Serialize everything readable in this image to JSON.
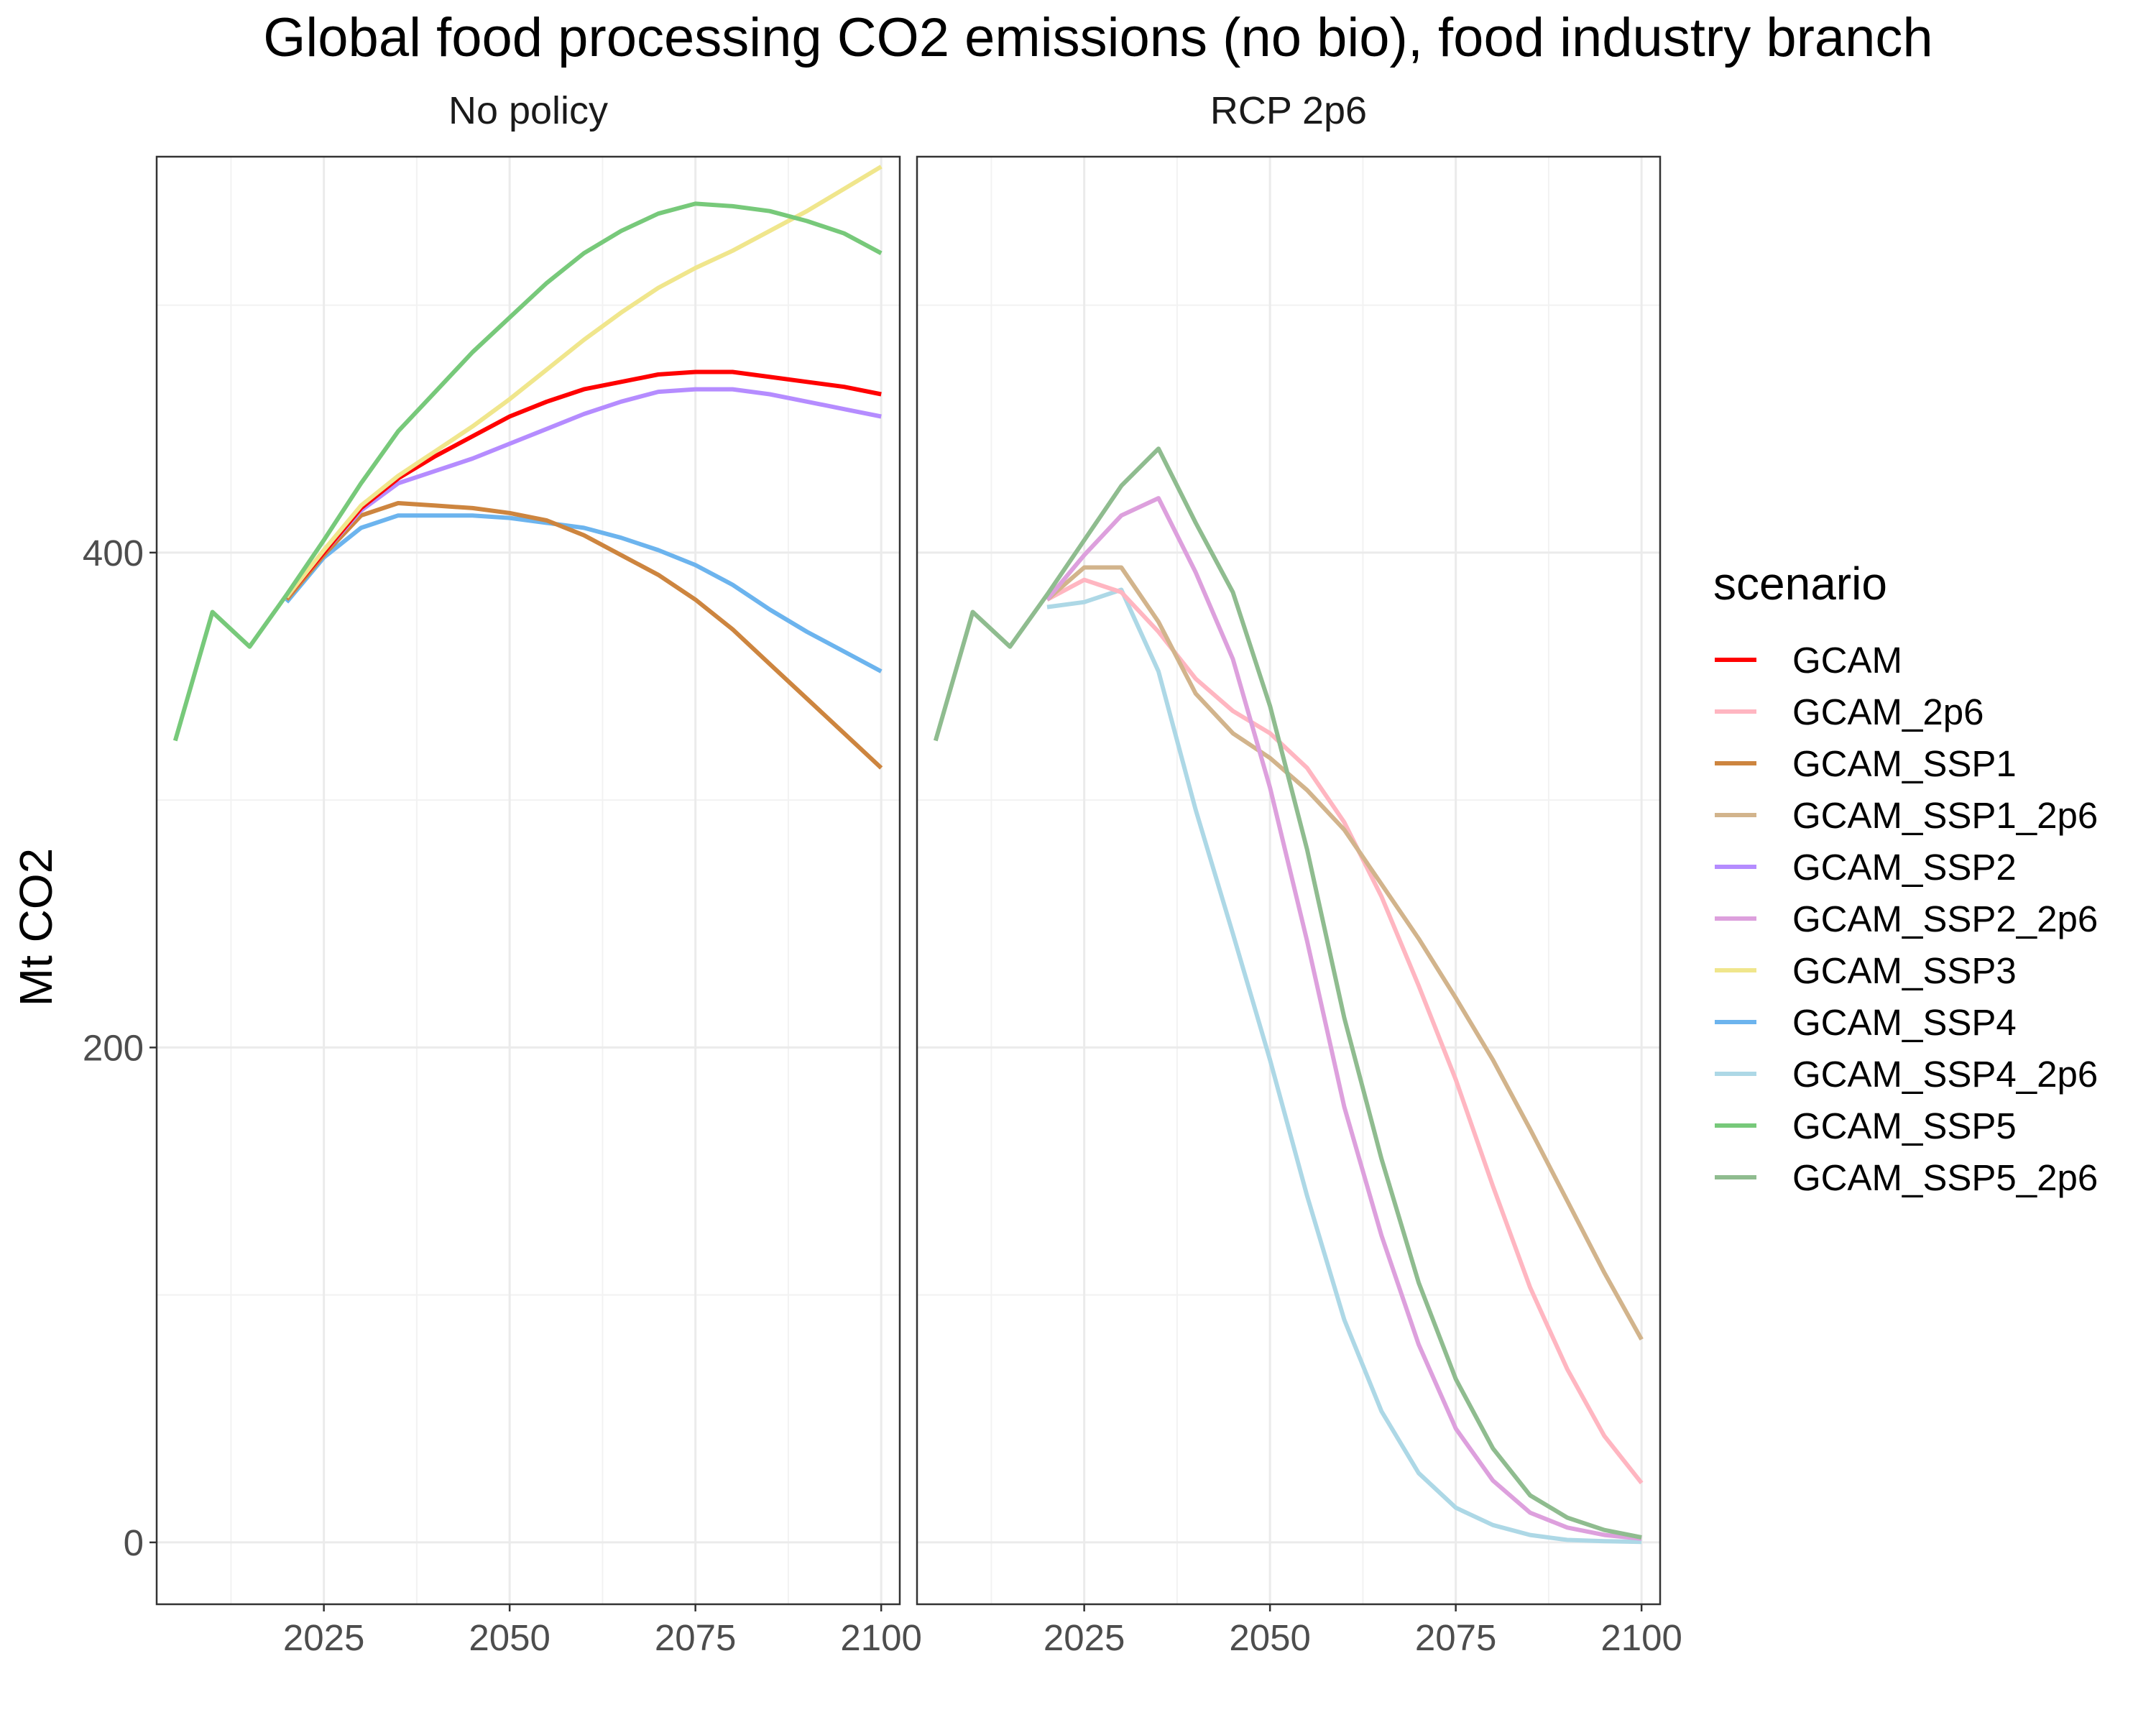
{
  "chart_data": {
    "type": "line",
    "title": "Global food processing CO2 emissions (no bio), food industry branch",
    "xlabel": "",
    "ylabel": "Mt CO2",
    "xlim": [
      2002.5,
      2102.5
    ],
    "ylim": [
      -25,
      560
    ],
    "x_ticks": [
      2025,
      2050,
      2075,
      2100
    ],
    "y_ticks": [
      0,
      200,
      400
    ],
    "grid": true,
    "legend": {
      "title": "scenario",
      "position": "right"
    },
    "colors": {
      "GCAM": "#ff0000",
      "GCAM_2p6": "#ffb6c1",
      "GCAM_SSP1": "#cd853f",
      "GCAM_SSP1_2p6": "#d2b48c",
      "GCAM_SSP2": "#b58cff",
      "GCAM_SSP2_2p6": "#dda0dd",
      "GCAM_SSP3": "#f0e68c",
      "GCAM_SSP4": "#6cb4ee",
      "GCAM_SSP4_2p6": "#add8e6",
      "GCAM_SSP5": "#77c97a",
      "GCAM_SSP5_2p6": "#8fbc8f"
    },
    "scenario_order": [
      "GCAM",
      "GCAM_2p6",
      "GCAM_SSP1",
      "GCAM_SSP1_2p6",
      "GCAM_SSP2",
      "GCAM_SSP2_2p6",
      "GCAM_SSP3",
      "GCAM_SSP4",
      "GCAM_SSP4_2p6",
      "GCAM_SSP5",
      "GCAM_SSP5_2p6"
    ],
    "panels": [
      {
        "label": "No policy",
        "series": [
          {
            "name": "GCAM_SSP4",
            "x": [
              2020,
              2025,
              2030,
              2035,
              2040,
              2045,
              2050,
              2055,
              2060,
              2065,
              2070,
              2075,
              2080,
              2085,
              2090,
              2095,
              2100
            ],
            "y": [
              380,
              398,
              410,
              415,
              415,
              415,
              414,
              412,
              410,
              406,
              401,
              395,
              387,
              377,
              368,
              360,
              352
            ]
          },
          {
            "name": "GCAM_SSP1",
            "x": [
              2020,
              2025,
              2030,
              2035,
              2040,
              2045,
              2050,
              2055,
              2060,
              2065,
              2070,
              2075,
              2080,
              2085,
              2090,
              2095,
              2100
            ],
            "y": [
              381,
              399,
              415,
              420,
              419,
              418,
              416,
              413,
              407,
              399,
              391,
              381,
              369,
              355,
              341,
              327,
              313
            ]
          },
          {
            "name": "GCAM_SSP2",
            "x": [
              2020,
              2025,
              2030,
              2035,
              2040,
              2045,
              2050,
              2055,
              2060,
              2065,
              2070,
              2075,
              2080,
              2085,
              2090,
              2095,
              2100
            ],
            "y": [
              382,
              400,
              417,
              428,
              433,
              438,
              444,
              450,
              456,
              461,
              465,
              466,
              466,
              464,
              461,
              458,
              455
            ]
          },
          {
            "name": "GCAM",
            "x": [
              2020,
              2025,
              2030,
              2035,
              2040,
              2045,
              2050,
              2055,
              2060,
              2065,
              2070,
              2075,
              2080,
              2085,
              2090,
              2095,
              2100
            ],
            "y": [
              382,
              400,
              418,
              430,
              439,
              447,
              455,
              461,
              466,
              469,
              472,
              473,
              473,
              471,
              469,
              467,
              464
            ]
          },
          {
            "name": "GCAM_SSP3",
            "x": [
              2020,
              2025,
              2030,
              2035,
              2040,
              2045,
              2050,
              2055,
              2060,
              2065,
              2070,
              2075,
              2080,
              2085,
              2090,
              2095,
              2100
            ],
            "y": [
              382,
              401,
              419,
              431,
              441,
              451,
              462,
              474,
              486,
              497,
              507,
              515,
              522,
              530,
              538,
              547,
              556
            ]
          },
          {
            "name": "GCAM_SSP5",
            "x": [
              2005,
              2010,
              2015,
              2020,
              2025,
              2030,
              2035,
              2040,
              2045,
              2050,
              2055,
              2060,
              2065,
              2070,
              2075,
              2080,
              2085,
              2090,
              2095,
              2100
            ],
            "y": [
              324,
              376,
              362,
              383,
              405,
              428,
              449,
              465,
              481,
              495,
              509,
              521,
              530,
              537,
              541,
              540,
              538,
              534,
              529,
              521
            ]
          }
        ]
      },
      {
        "label": "RCP 2p6",
        "series": [
          {
            "name": "GCAM_SSP4_2p6",
            "x": [
              2020,
              2025,
              2030,
              2035,
              2040,
              2045,
              2050,
              2055,
              2060,
              2065,
              2070,
              2075,
              2080,
              2085,
              2090,
              2095,
              2100
            ],
            "y": [
              378,
              380,
              385,
              352,
              296,
              246,
              195,
              140,
              90,
              53,
              28,
              14,
              7,
              3,
              1,
              0.5,
              0.2
            ]
          },
          {
            "name": "GCAM_2p6",
            "x": [
              2020,
              2025,
              2030,
              2035,
              2040,
              2045,
              2050,
              2055,
              2060,
              2065,
              2070,
              2075,
              2080,
              2085,
              2090,
              2095,
              2100
            ],
            "y": [
              381,
              389,
              384,
              368,
              349,
              336,
              327,
              313,
              291,
              261,
              225,
              187,
              144,
              103,
              70,
              43,
              24
            ]
          },
          {
            "name": "GCAM_SSP1_2p6",
            "x": [
              2020,
              2025,
              2030,
              2035,
              2040,
              2045,
              2050,
              2055,
              2060,
              2065,
              2070,
              2075,
              2080,
              2085,
              2090,
              2095,
              2100
            ],
            "y": [
              381,
              394,
              394,
              372,
              343,
              327,
              317,
              304,
              288,
              266,
              244,
              220,
              195,
              167,
              138,
              109,
              82
            ]
          },
          {
            "name": "GCAM_SSP2_2p6",
            "x": [
              2020,
              2025,
              2030,
              2035,
              2040,
              2045,
              2050,
              2055,
              2060,
              2065,
              2070,
              2075,
              2080,
              2085,
              2090,
              2095,
              2100
            ],
            "y": [
              381,
              399,
              415,
              422,
              392,
              357,
              305,
              243,
              176,
              124,
              80,
              46,
              25,
              12,
              6,
              3,
              1.5
            ]
          },
          {
            "name": "GCAM_SSP5_2p6",
            "x": [
              2005,
              2010,
              2015,
              2020,
              2025,
              2030,
              2035,
              2040,
              2045,
              2050,
              2055,
              2060,
              2065,
              2070,
              2075,
              2080,
              2085,
              2090,
              2095,
              2100
            ],
            "y": [
              324,
              376,
              362,
              383,
              405,
              427,
              442,
              412,
              384,
              338,
              280,
              212,
              155,
              105,
              66,
              38,
              19,
              10,
              5,
              2
            ]
          }
        ]
      }
    ]
  }
}
